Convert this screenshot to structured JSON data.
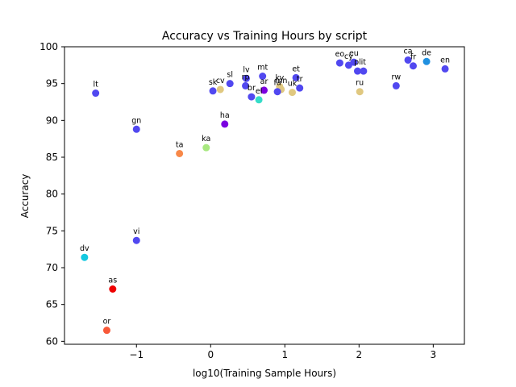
{
  "chart_data": {
    "type": "scatter",
    "title": "Accuracy vs Training Hours by script",
    "xlabel": "log10(Training Sample Hours)",
    "ylabel": "Accuracy",
    "xlim": [
      -1.97,
      3.42
    ],
    "ylim": [
      59.6,
      100
    ],
    "xticks": [
      -1,
      0,
      1,
      2,
      3
    ],
    "xtick_labels": [
      "−1",
      "0",
      "1",
      "2",
      "3"
    ],
    "yticks": [
      60,
      65,
      70,
      75,
      80,
      85,
      90,
      95,
      100
    ],
    "grid": false,
    "colors": {
      "latin": "#5148f0",
      "cyrillic": "#e0c880",
      "arabic": "#7b00e0",
      "ethiopic": "#a8e880",
      "bengali": "#ee0000",
      "tamil": "#f88848",
      "thaana": "#14c8e0",
      "odia": "#f85838",
      "armenian": "#35dcc8",
      "devanagari_blue": "#2090e0"
    },
    "points": [
      {
        "label": "lt",
        "x": -1.55,
        "y": 93.7,
        "color": "#5148f0"
      },
      {
        "label": "gn",
        "x": -1.0,
        "y": 88.8,
        "color": "#5148f0"
      },
      {
        "label": "vi",
        "x": -1.0,
        "y": 73.7,
        "color": "#5148f0"
      },
      {
        "label": "dv",
        "x": -1.7,
        "y": 71.4,
        "color": "#14c8e0"
      },
      {
        "label": "as",
        "x": -1.32,
        "y": 67.1,
        "color": "#ee0000"
      },
      {
        "label": "or",
        "x": -1.4,
        "y": 61.5,
        "color": "#f85838"
      },
      {
        "label": "ta",
        "x": -0.42,
        "y": 85.5,
        "color": "#f88848"
      },
      {
        "label": "ka",
        "x": -0.06,
        "y": 86.3,
        "color": "#a8e880"
      },
      {
        "label": "ha",
        "x": 0.19,
        "y": 89.5,
        "color": "#7b00e0"
      },
      {
        "label": "sk",
        "x": 0.03,
        "y": 94.0,
        "color": "#5148f0"
      },
      {
        "label": "cv",
        "x": 0.13,
        "y": 94.2,
        "color": "#e0c880"
      },
      {
        "label": "sl",
        "x": 0.26,
        "y": 95.0,
        "color": "#5148f0"
      },
      {
        "label": "lv",
        "x": 0.48,
        "y": 95.7,
        "color": "#5148f0"
      },
      {
        "label": "rp",
        "x": 0.47,
        "y": 94.7,
        "color": "#5148f0"
      },
      {
        "label": "br",
        "x": 0.55,
        "y": 93.2,
        "color": "#5148f0"
      },
      {
        "label": "el",
        "x": 0.65,
        "y": 92.8,
        "color": "#35dcc8"
      },
      {
        "label": "mt",
        "x": 0.7,
        "y": 96.0,
        "color": "#5148f0"
      },
      {
        "label": "ar",
        "x": 0.72,
        "y": 94.1,
        "color": "#7b00e0"
      },
      {
        "label": "ky",
        "x": 0.93,
        "y": 94.6,
        "color": "#e0c880"
      },
      {
        "label": "mn",
        "x": 0.95,
        "y": 94.2,
        "color": "#e0c880"
      },
      {
        "label": "fa",
        "x": 0.9,
        "y": 93.9,
        "color": "#5148f0"
      },
      {
        "label": "uk",
        "x": 1.1,
        "y": 93.8,
        "color": "#e0c880"
      },
      {
        "label": "et",
        "x": 1.15,
        "y": 95.8,
        "color": "#5148f0"
      },
      {
        "label": "tr",
        "x": 1.2,
        "y": 94.4,
        "color": "#5148f0"
      },
      {
        "label": "eo",
        "x": 1.74,
        "y": 97.8,
        "color": "#5148f0"
      },
      {
        "label": "cy",
        "x": 1.86,
        "y": 97.5,
        "color": "#5148f0"
      },
      {
        "label": "eu",
        "x": 1.93,
        "y": 97.9,
        "color": "#5148f0"
      },
      {
        "label": "pl",
        "x": 1.98,
        "y": 96.7,
        "color": "#5148f0"
      },
      {
        "label": "it",
        "x": 2.06,
        "y": 96.7,
        "color": "#5148f0"
      },
      {
        "label": "ru",
        "x": 2.01,
        "y": 93.9,
        "color": "#e0c880"
      },
      {
        "label": "rw",
        "x": 2.5,
        "y": 94.7,
        "color": "#5148f0"
      },
      {
        "label": "ca",
        "x": 2.66,
        "y": 98.2,
        "color": "#5148f0"
      },
      {
        "label": "fr",
        "x": 2.73,
        "y": 97.4,
        "color": "#5148f0"
      },
      {
        "label": "de",
        "x": 2.91,
        "y": 98.0,
        "color": "#2090e0"
      },
      {
        "label": "en",
        "x": 3.16,
        "y": 97.0,
        "color": "#5148f0"
      }
    ]
  }
}
